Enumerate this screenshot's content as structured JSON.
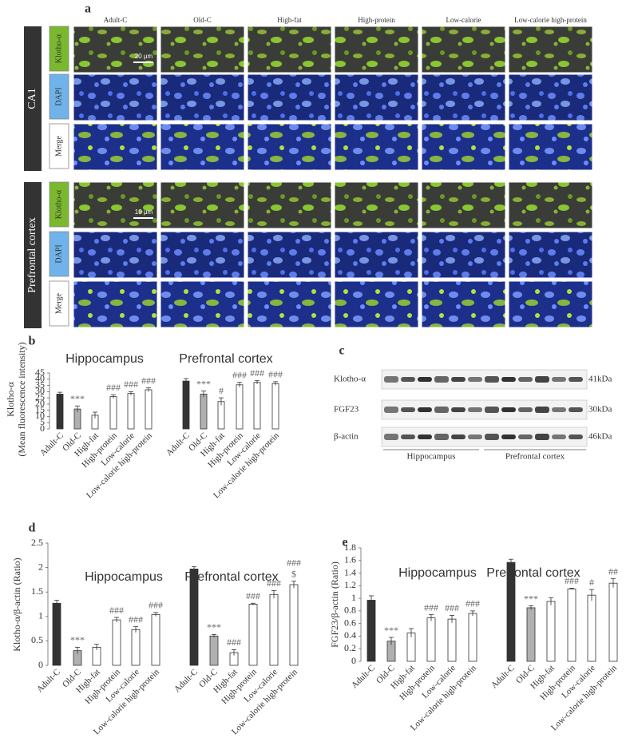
{
  "panel_a": {
    "label": "a",
    "columns": [
      "Adult-C",
      "Old-C",
      "High-fat",
      "High-protein",
      "Low-calorie",
      "Low-calorie high-protein"
    ],
    "groups": [
      {
        "name": "CA1",
        "rows": [
          "Klotho-α",
          "DAPI",
          "Merge"
        ],
        "scale_bar": "20 μm"
      },
      {
        "name": "Prefrontal cortex",
        "rows": [
          "Klotho-α",
          "DAPI",
          "Merge"
        ],
        "scale_bar": "10 μm"
      }
    ]
  },
  "panel_c": {
    "label": "c",
    "rows": [
      {
        "name": "Klotho-α",
        "size": "41kDa"
      },
      {
        "name": "FGF23",
        "size": "30kDa"
      },
      {
        "name": "β-actin",
        "size": "46kDa"
      }
    ],
    "groups": [
      "Hippocampus",
      "Prefrontal cortex"
    ]
  },
  "chart_data": [
    {
      "label": "b",
      "type": "bar",
      "ylabel": [
        "Klotho-α",
        "(Mean fluorescence intensity)"
      ],
      "ylim": [
        0,
        45
      ],
      "yticks": [
        0,
        5,
        10,
        15,
        20,
        25,
        30,
        35,
        40,
        45
      ],
      "categories": [
        "Adult-C",
        "Old-C",
        "High-fat",
        "High-protein",
        "Low-calorie",
        "Low-calorie high-protein"
      ],
      "colors": [
        "#333333",
        "#b0b0b0",
        "#ffffff",
        "#ffffff",
        "#ffffff",
        "#ffffff"
      ],
      "groups": [
        {
          "name": "Hippocampus",
          "values": [
            28,
            16,
            11,
            26,
            28.5,
            31.5
          ],
          "errors": [
            1.5,
            2.5,
            2.5,
            1.5,
            1.5,
            1.5
          ],
          "annotations": [
            null,
            [
              "***"
            ],
            null,
            [
              "###"
            ],
            [
              "###"
            ],
            [
              "###"
            ]
          ]
        },
        {
          "name": "Prefrontal cortex",
          "values": [
            38.5,
            28,
            22,
            35.5,
            37.5,
            36.5
          ],
          "errors": [
            2,
            2.5,
            3,
            2,
            1.5,
            1.5
          ],
          "annotations": [
            null,
            [
              "***"
            ],
            [
              "#"
            ],
            [
              "###"
            ],
            [
              "###"
            ],
            [
              "###"
            ]
          ]
        }
      ]
    },
    {
      "label": "d",
      "type": "bar",
      "ylabel": [
        "Klotho-α/β-actin (Ratio)"
      ],
      "ylim": [
        0,
        2.5
      ],
      "yticks": [
        0,
        0.5,
        1,
        1.5,
        2,
        2.5
      ],
      "categories": [
        "Adult-C",
        "Old-C",
        "High-fat",
        "High-protein",
        "Low-calorie",
        "Low-calorie high-protein"
      ],
      "colors": [
        "#333333",
        "#b0b0b0",
        "#ffffff",
        "#ffffff",
        "#ffffff",
        "#ffffff"
      ],
      "groups": [
        {
          "name": "Hippocampus",
          "values": [
            1.27,
            0.3,
            0.37,
            0.93,
            0.73,
            1.04
          ],
          "errors": [
            0.06,
            0.07,
            0.06,
            0.05,
            0.06,
            0.04
          ],
          "annotations": [
            null,
            [
              "***"
            ],
            null,
            [
              "###"
            ],
            [
              "###"
            ],
            [
              "###"
            ]
          ]
        },
        {
          "name": "Prefrontal cortex",
          "values": [
            1.97,
            0.6,
            0.26,
            1.25,
            1.45,
            1.65
          ],
          "errors": [
            0.05,
            0.03,
            0.06,
            0.02,
            0.08,
            0.07
          ],
          "annotations": [
            null,
            [
              "***"
            ],
            [
              "###"
            ],
            [
              "###"
            ],
            [
              "###"
            ],
            [
              "$",
              "###"
            ]
          ]
        }
      ]
    },
    {
      "label": "e",
      "type": "bar",
      "ylabel": [
        "FGF23/β-actin (Ratio)"
      ],
      "ylim": [
        0,
        1.8
      ],
      "yticks": [
        0,
        0.2,
        0.4,
        0.6,
        0.8,
        1,
        1.2,
        1.4,
        1.6,
        1.8
      ],
      "categories": [
        "Adult-C",
        "Old-C",
        "High-fat",
        "High-protein",
        "Low-calorie",
        "Low-calorie high-protein"
      ],
      "colors": [
        "#333333",
        "#b0b0b0",
        "#ffffff",
        "#ffffff",
        "#ffffff",
        "#ffffff"
      ],
      "groups": [
        {
          "name": "Hippocampus",
          "values": [
            0.97,
            0.32,
            0.45,
            0.69,
            0.67,
            0.76
          ],
          "errors": [
            0.07,
            0.06,
            0.07,
            0.05,
            0.06,
            0.04
          ],
          "annotations": [
            null,
            [
              "***"
            ],
            null,
            [
              "###"
            ],
            [
              "###"
            ],
            [
              "###"
            ]
          ]
        },
        {
          "name": "Prefrontal cortex",
          "values": [
            1.57,
            0.85,
            0.95,
            1.15,
            1.05,
            1.24
          ],
          "errors": [
            0.05,
            0.03,
            0.06,
            0.01,
            0.09,
            0.07
          ],
          "annotations": [
            null,
            [
              "***"
            ],
            null,
            [
              "###"
            ],
            [
              "#"
            ],
            [
              "##"
            ]
          ]
        }
      ]
    }
  ]
}
